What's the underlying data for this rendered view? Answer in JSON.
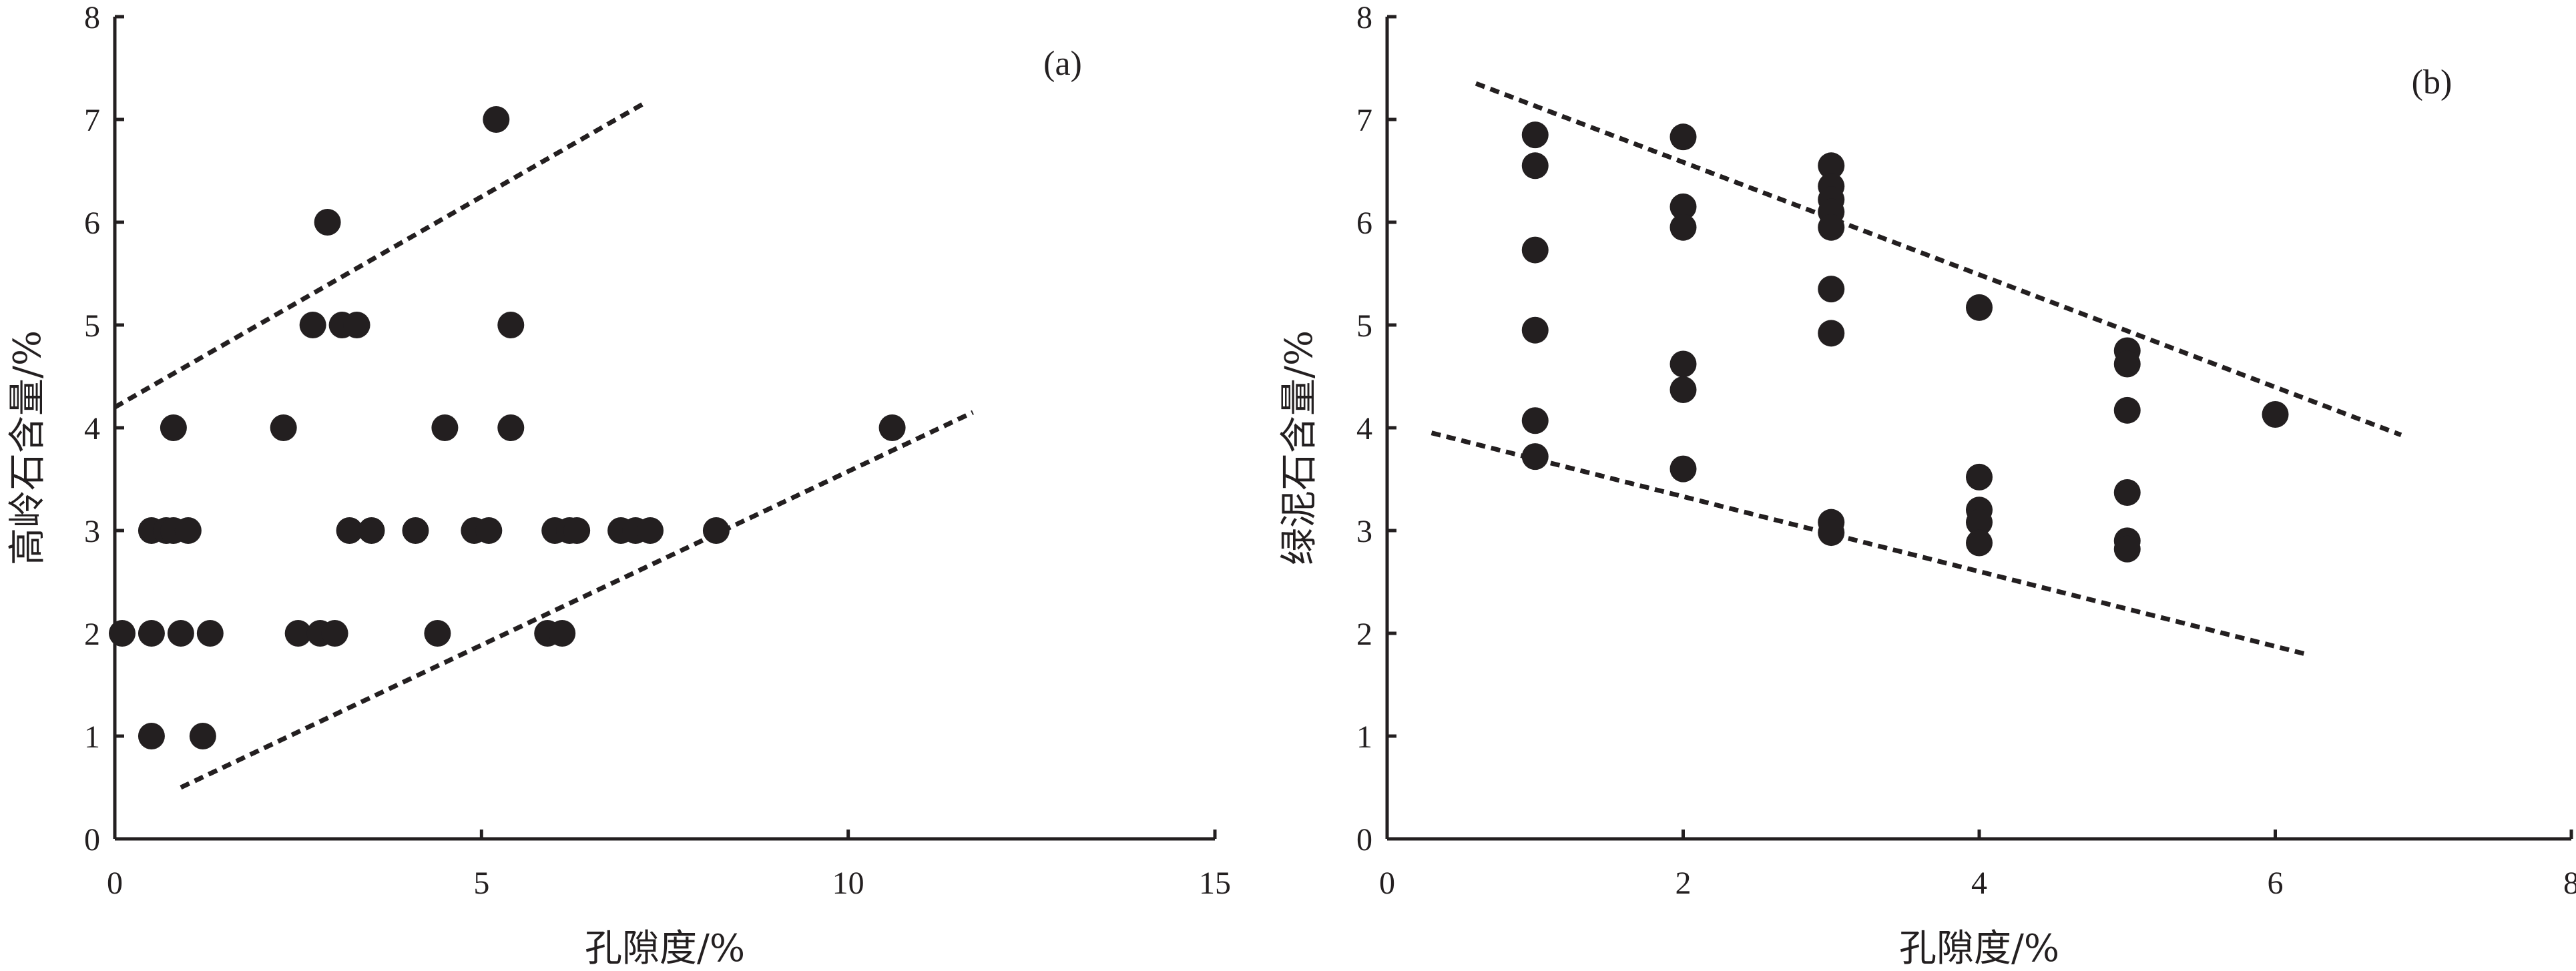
{
  "chart_data": [
    {
      "type": "scatter",
      "panel_label": "(a)",
      "xlabel": "孔隙度/%",
      "ylabel": "高岭石含量/%",
      "xlim": [
        0,
        15
      ],
      "ylim": [
        0,
        8
      ],
      "xticks": [
        "0",
        "5",
        "10",
        "15"
      ],
      "yticks": [
        "0",
        "1",
        "2",
        "3",
        "4",
        "5",
        "6",
        "7",
        "8"
      ],
      "grid": false,
      "series": [
        {
          "points": [
            [
              0.1,
              2
            ],
            [
              0.5,
              3
            ],
            [
              0.5,
              2
            ],
            [
              0.5,
              1
            ],
            [
              0.7,
              3
            ],
            [
              0.8,
              3
            ],
            [
              0.8,
              4
            ],
            [
              0.9,
              2
            ],
            [
              1.0,
              3
            ],
            [
              1.2,
              1
            ],
            [
              1.3,
              2
            ],
            [
              2.3,
              4
            ],
            [
              2.5,
              2
            ],
            [
              2.7,
              5
            ],
            [
              2.8,
              2
            ],
            [
              2.9,
              6
            ],
            [
              3.0,
              2
            ],
            [
              3.1,
              5
            ],
            [
              3.2,
              3
            ],
            [
              3.3,
              5
            ],
            [
              3.5,
              3
            ],
            [
              4.1,
              3
            ],
            [
              4.4,
              2
            ],
            [
              4.5,
              4
            ],
            [
              4.9,
              3
            ],
            [
              5.1,
              3
            ],
            [
              5.2,
              7
            ],
            [
              5.4,
              4
            ],
            [
              5.4,
              5
            ],
            [
              5.9,
              2
            ],
            [
              6.0,
              3
            ],
            [
              6.1,
              2
            ],
            [
              6.2,
              3
            ],
            [
              6.3,
              3
            ],
            [
              6.9,
              3
            ],
            [
              7.1,
              3
            ],
            [
              7.3,
              3
            ],
            [
              8.2,
              3
            ],
            [
              10.6,
              4
            ]
          ]
        }
      ],
      "trend_lines": [
        {
          "from": [
            0,
            4.2
          ],
          "to": [
            7.2,
            7.15
          ]
        },
        {
          "from": [
            0.9,
            0.5
          ],
          "to": [
            11.7,
            4.15
          ]
        }
      ]
    },
    {
      "type": "scatter",
      "panel_label": "(b)",
      "xlabel": "孔隙度/%",
      "ylabel": "绿泥石含量/%",
      "xlim": [
        0,
        8
      ],
      "ylim": [
        0,
        8
      ],
      "xticks": [
        "0",
        "2",
        "4",
        "6",
        "8"
      ],
      "yticks": [
        "0",
        "1",
        "2",
        "3",
        "4",
        "5",
        "6",
        "7",
        "8"
      ],
      "grid": false,
      "series": [
        {
          "points": [
            [
              1,
              6.85
            ],
            [
              1,
              6.55
            ],
            [
              1,
              5.73
            ],
            [
              1,
              4.95
            ],
            [
              1,
              4.07
            ],
            [
              1,
              3.72
            ],
            [
              2,
              6.83
            ],
            [
              2,
              6.15
            ],
            [
              2,
              5.95
            ],
            [
              2,
              4.62
            ],
            [
              2,
              4.37
            ],
            [
              2,
              3.6
            ],
            [
              3,
              6.55
            ],
            [
              3,
              6.35
            ],
            [
              3,
              6.22
            ],
            [
              3,
              6.1
            ],
            [
              3,
              5.95
            ],
            [
              3,
              5.35
            ],
            [
              3,
              4.92
            ],
            [
              3,
              3.08
            ],
            [
              3,
              2.98
            ],
            [
              4,
              5.17
            ],
            [
              4,
              3.52
            ],
            [
              4,
              3.2
            ],
            [
              4,
              3.08
            ],
            [
              4,
              2.88
            ],
            [
              5,
              4.75
            ],
            [
              5,
              4.62
            ],
            [
              5,
              4.17
            ],
            [
              5,
              3.37
            ],
            [
              5,
              2.9
            ],
            [
              5,
              2.82
            ],
            [
              6,
              4.13
            ]
          ]
        }
      ],
      "trend_lines": [
        {
          "from": [
            0.6,
            7.35
          ],
          "to": [
            6.85,
            3.93
          ]
        },
        {
          "from": [
            0.3,
            3.95
          ],
          "to": [
            6.2,
            1.8
          ]
        }
      ]
    }
  ]
}
